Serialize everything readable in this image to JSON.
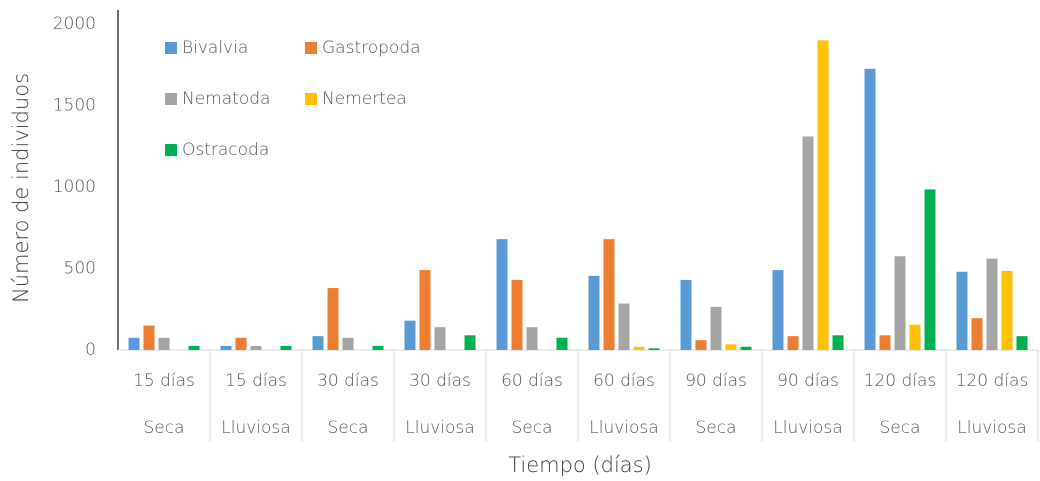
{
  "chart_data": {
    "type": "bar",
    "x_label": "Tiempo (días)",
    "y_label": "Número de individuos",
    "categories": [
      "15 días",
      "15 días",
      "30 días",
      "30 días",
      "60 días",
      "60 días",
      "90 días",
      "90 días",
      "120 días",
      "120 días"
    ],
    "category_groups": [
      "Seca",
      "Lluviosa",
      "Seca",
      "Lluviosa",
      "Seca",
      "Lluviosa",
      "Seca",
      "Lluviosa",
      "Seca",
      "Lluviosa"
    ],
    "series": [
      {
        "name": "Bivalvia",
        "color": "#5b9bd5",
        "values": [
          75,
          25,
          85,
          180,
          680,
          455,
          430,
          490,
          1725,
          480
        ]
      },
      {
        "name": "Gastropoda",
        "color": "#ed7d31",
        "values": [
          150,
          75,
          380,
          490,
          430,
          680,
          60,
          85,
          90,
          195
        ]
      },
      {
        "name": "Nematoda",
        "color": "#a5a5a5",
        "values": [
          75,
          25,
          75,
          140,
          140,
          285,
          265,
          1310,
          575,
          560
        ]
      },
      {
        "name": "Nemertea",
        "color": "#ffc000",
        "values": [
          0,
          0,
          0,
          0,
          0,
          20,
          35,
          1900,
          155,
          485
        ]
      },
      {
        "name": "Ostracoda",
        "color": "#00b050",
        "values": [
          25,
          25,
          25,
          90,
          75,
          10,
          20,
          90,
          985,
          85
        ]
      }
    ],
    "ylim": [
      0,
      2000
    ],
    "yticks": [
      0,
      500,
      1000,
      1500,
      2000
    ]
  }
}
